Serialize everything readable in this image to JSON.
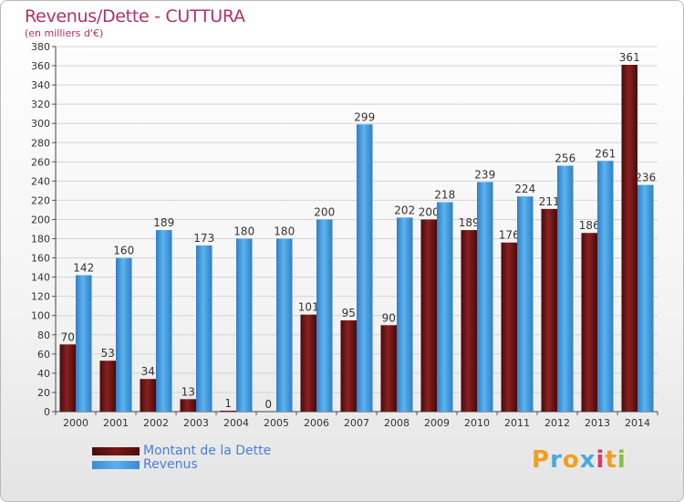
{
  "chart_data": {
    "type": "bar",
    "title": "Revenus/Dette - CUTTURA",
    "subtitle": "(en milliers d'€)",
    "categories": [
      "2000",
      "2001",
      "2002",
      "2003",
      "2004",
      "2005",
      "2006",
      "2007",
      "2008",
      "2009",
      "2010",
      "2011",
      "2012",
      "2013",
      "2014"
    ],
    "series": [
      {
        "name": "Montant de la Dette",
        "color": "#7a1818",
        "values": [
          70,
          53,
          34,
          13,
          1,
          0,
          101,
          95,
          90,
          200,
          189,
          176,
          211,
          186,
          361
        ]
      },
      {
        "name": "Revenus",
        "color": "#4a9fe0",
        "values": [
          142,
          160,
          189,
          173,
          180,
          180,
          200,
          299,
          202,
          218,
          239,
          224,
          256,
          261,
          236
        ]
      }
    ],
    "ylim": [
      0,
      380
    ],
    "yticks": [
      0,
      20,
      40,
      60,
      80,
      100,
      120,
      140,
      160,
      180,
      200,
      220,
      240,
      260,
      280,
      300,
      320,
      340,
      360,
      380
    ],
    "grid": true,
    "legend_position": "bottom-left"
  },
  "logo": {
    "letters": [
      "P",
      "r",
      "o",
      "x",
      "i",
      "t",
      "i"
    ],
    "colors": [
      "#f0a020",
      "#4aa8e0",
      "#f0a020",
      "#4aa8e0",
      "#d04060",
      "#f0a020",
      "#88c040"
    ]
  }
}
